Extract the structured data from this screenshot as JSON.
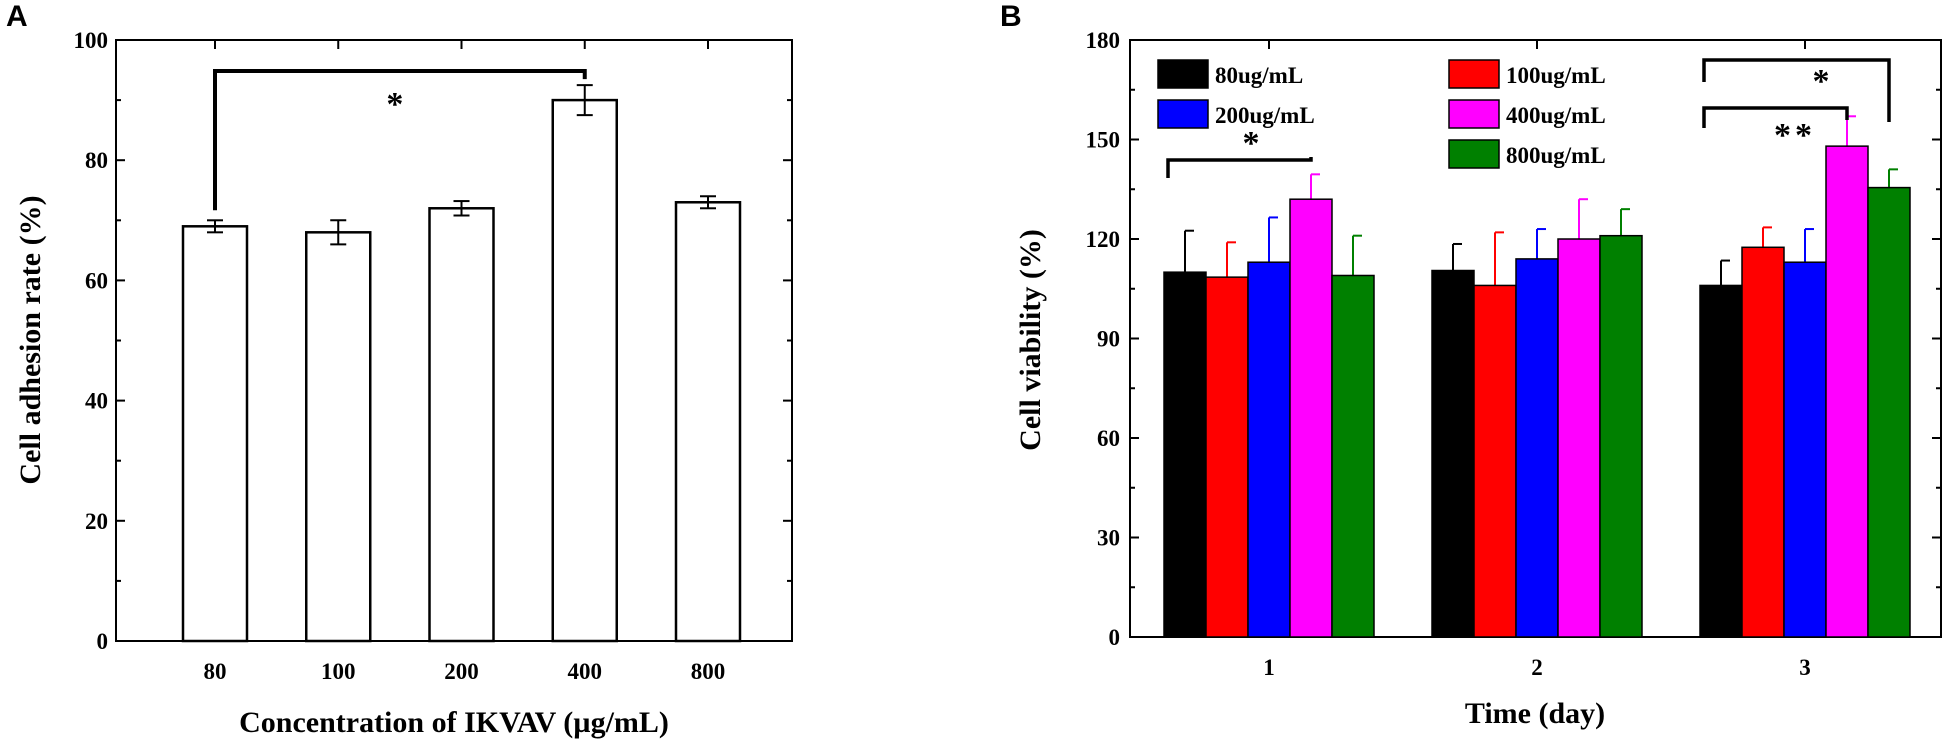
{
  "chart_data": [
    {
      "panel": "A",
      "type": "bar",
      "xlabel": "Concentration of IKVAV (µg/mL)",
      "ylabel": "Cell adhesion rate (%)",
      "ylim": [
        0,
        100
      ],
      "yticks": [
        0,
        20,
        40,
        60,
        80,
        100
      ],
      "categories": [
        "80",
        "100",
        "200",
        "400",
        "800"
      ],
      "values": [
        69,
        68,
        72,
        90,
        73
      ],
      "errors": [
        1.0,
        2.0,
        1.2,
        2.5,
        1.0
      ],
      "bar_color": "#ffffff",
      "significance": [
        {
          "from": 0,
          "to": 3,
          "label": "*"
        }
      ]
    },
    {
      "panel": "B",
      "type": "bar",
      "xlabel": "Time (day)",
      "ylabel": "Cell viability (%)",
      "ylim": [
        0,
        180
      ],
      "yticks": [
        0,
        30,
        60,
        90,
        120,
        150,
        180
      ],
      "categories": [
        "1",
        "2",
        "3"
      ],
      "series": [
        {
          "name": "80ug/mL",
          "color": "#000000",
          "values": [
            110,
            110.5,
            106
          ],
          "errors": [
            12.5,
            8,
            7.5
          ]
        },
        {
          "name": "100ug/mL",
          "color": "#ff0000",
          "values": [
            108.5,
            106,
            117.5
          ],
          "errors": [
            10.5,
            16,
            6
          ]
        },
        {
          "name": "200ug/mL",
          "color": "#0000ff",
          "values": [
            113,
            114,
            113
          ],
          "errors": [
            13.5,
            9,
            10
          ]
        },
        {
          "name": "400ug/mL",
          "color": "#ff00ff",
          "values": [
            132,
            120,
            148
          ],
          "errors": [
            7.5,
            12,
            9
          ]
        },
        {
          "name": "800ug/mL",
          "color": "#008000",
          "values": [
            109,
            121,
            135.5
          ],
          "errors": [
            12,
            8,
            5.5
          ]
        }
      ],
      "significance": [
        {
          "group": 0,
          "from": 0,
          "to": 3,
          "label": "*"
        },
        {
          "group": 2,
          "from": 0,
          "to": 4,
          "label": "*"
        },
        {
          "group": 2,
          "from": 0,
          "to": 3,
          "label": "**"
        }
      ]
    }
  ]
}
